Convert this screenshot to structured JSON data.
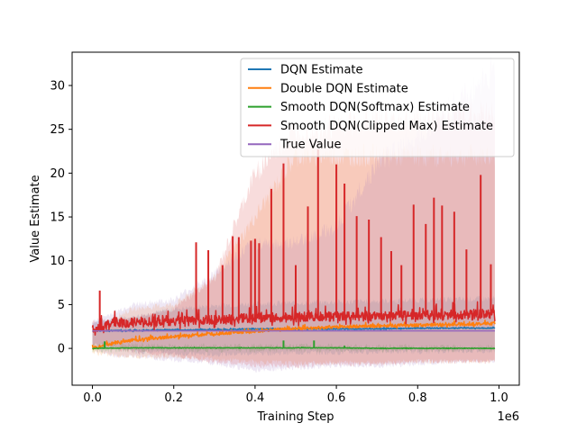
{
  "chart_data": {
    "type": "line",
    "title": "",
    "xlabel": "Training Step",
    "ylabel": "Value Estimate",
    "x_offset_text": "1e6",
    "xlim": [
      -0.05,
      1.05
    ],
    "ylim": [
      -4.2,
      33.8
    ],
    "x_ticks": [
      0.0,
      0.2,
      0.4,
      0.6,
      0.8,
      1.0
    ],
    "x_tick_labels": [
      "0.0",
      "0.2",
      "0.4",
      "0.6",
      "0.8",
      "1.0"
    ],
    "y_ticks": [
      0,
      5,
      10,
      15,
      20,
      25,
      30
    ],
    "y_tick_labels": [
      "0",
      "5",
      "10",
      "15",
      "20",
      "25",
      "30"
    ],
    "grid": false,
    "legend_position": "top-right",
    "series": [
      {
        "name": "DQN Estimate",
        "color": "#1f77b4",
        "x": [
          0.0,
          0.1,
          0.2,
          0.3,
          0.4,
          0.5,
          0.6,
          0.7,
          0.8,
          0.9,
          0.99
        ],
        "values": [
          2.0,
          2.0,
          2.1,
          2.1,
          2.2,
          2.2,
          2.2,
          2.2,
          2.3,
          2.3,
          2.3
        ],
        "band_upper": [
          3.0,
          3.6,
          4.5,
          4.9,
          5.1,
          5.2,
          5.3,
          5.4,
          5.5,
          5.6,
          5.7
        ],
        "band_lower": [
          0.5,
          -0.3,
          -0.6,
          -0.7,
          -0.6,
          -0.5,
          -0.5,
          -0.4,
          -0.4,
          -0.3,
          -0.3
        ]
      },
      {
        "name": "Double DQN Estimate",
        "color": "#ff7f0e",
        "x": [
          0.0,
          0.05,
          0.1,
          0.2,
          0.3,
          0.4,
          0.5,
          0.6,
          0.7,
          0.8,
          0.9,
          0.99
        ],
        "values": [
          0.0,
          0.5,
          0.9,
          1.3,
          1.6,
          1.9,
          2.2,
          2.4,
          2.5,
          2.6,
          2.7,
          2.8
        ],
        "band_upper": [
          1.5,
          3.5,
          4.5,
          5.0,
          8.0,
          15.0,
          22.0,
          22.0,
          22.0,
          22.0,
          22.0,
          22.0
        ],
        "band_lower": [
          -0.5,
          -0.8,
          -0.9,
          -1.0,
          -1.2,
          -1.5,
          -1.7,
          -1.6,
          -1.6,
          -1.5,
          -1.5,
          -1.5
        ]
      },
      {
        "name": "Smooth DQN(Softmax) Estimate",
        "color": "#2ca02c",
        "x": [
          0.0,
          0.1,
          0.2,
          0.3,
          0.4,
          0.5,
          0.6,
          0.7,
          0.8,
          0.9,
          0.99
        ],
        "values": [
          0.0,
          0.05,
          0.05,
          0.05,
          0.05,
          0.05,
          0.05,
          0.0,
          0.0,
          0.0,
          0.0
        ],
        "spikes": [
          [
            0.03,
            0.8
          ],
          [
            0.47,
            0.9
          ],
          [
            0.545,
            0.9
          ],
          [
            0.62,
            0.3
          ]
        ],
        "band_upper": [
          0.5,
          0.4,
          0.3,
          0.3,
          0.3,
          0.3,
          0.3,
          0.2,
          0.2,
          0.2,
          0.2
        ],
        "band_lower": [
          -0.3,
          -0.2,
          -0.2,
          -0.2,
          -0.2,
          -0.2,
          -0.2,
          -0.2,
          -0.2,
          -0.2,
          -0.2
        ]
      },
      {
        "name": "Smooth DQN(Clipped Max) Estimate",
        "color": "#d62728",
        "x": [
          0.0,
          0.05,
          0.1,
          0.2,
          0.3,
          0.4,
          0.5,
          0.6,
          0.7,
          0.8,
          0.9,
          0.99
        ],
        "values": [
          2.0,
          2.8,
          2.8,
          2.9,
          3.1,
          3.3,
          3.4,
          3.5,
          3.5,
          3.6,
          3.7,
          3.8
        ],
        "spikes": [
          [
            0.018,
            6.6
          ],
          [
            0.255,
            12.1
          ],
          [
            0.285,
            11.2
          ],
          [
            0.32,
            9.5
          ],
          [
            0.345,
            12.8
          ],
          [
            0.36,
            12.7
          ],
          [
            0.39,
            12.3
          ],
          [
            0.41,
            12.0
          ],
          [
            0.4,
            12.5
          ],
          [
            0.44,
            18.2
          ],
          [
            0.47,
            21.1
          ],
          [
            0.5,
            9.5
          ],
          [
            0.53,
            16.2
          ],
          [
            0.555,
            22.7
          ],
          [
            0.6,
            21.0
          ],
          [
            0.62,
            18.8
          ],
          [
            0.65,
            15.1
          ],
          [
            0.68,
            14.7
          ],
          [
            0.71,
            12.7
          ],
          [
            0.735,
            11.1
          ],
          [
            0.76,
            9.5
          ],
          [
            0.79,
            16.4
          ],
          [
            0.82,
            14.2
          ],
          [
            0.84,
            17.2
          ],
          [
            0.86,
            16.3
          ],
          [
            0.89,
            15.6
          ],
          [
            0.92,
            11.3
          ],
          [
            0.955,
            19.8
          ],
          [
            0.98,
            9.6
          ]
        ],
        "band_upper": [
          3.0,
          3.3,
          3.5,
          4.5,
          8.0,
          20.0,
          25.0,
          25.5,
          26.0,
          26.0,
          26.5,
          27.0
        ],
        "band_lower": [
          0.5,
          0.0,
          -0.4,
          -0.8,
          -1.5,
          -2.0,
          -2.0,
          -1.8,
          -1.8,
          -1.5,
          -1.5,
          -1.5
        ]
      },
      {
        "name": "True Value",
        "color": "#9467bd",
        "x": [
          0.0,
          0.99
        ],
        "values": [
          2.0,
          2.0
        ],
        "band_upper": [
          3.0,
          4.0,
          5.0,
          5.5,
          8.5,
          12.0,
          12.0,
          14.0,
          21.0,
          24.5,
          28.0,
          31.8
        ],
        "band_upper_x": [
          0.0,
          0.05,
          0.1,
          0.2,
          0.3,
          0.4,
          0.5,
          0.6,
          0.7,
          0.8,
          0.9,
          0.99
        ],
        "band_lower": [
          0.0,
          -0.8,
          -1.0,
          -1.3,
          -1.7,
          -2.5,
          -2.2,
          -2.0,
          -2.0,
          -1.8,
          -1.5,
          -1.5
        ],
        "band_lower_x": [
          0.0,
          0.05,
          0.1,
          0.2,
          0.3,
          0.4,
          0.5,
          0.6,
          0.7,
          0.8,
          0.9,
          0.99
        ]
      }
    ]
  }
}
